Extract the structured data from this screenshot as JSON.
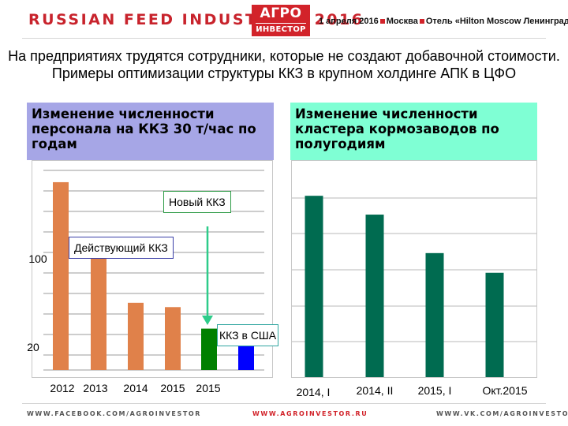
{
  "header": {
    "title": "RUSSIAN FEED INDUSTRY — 2016",
    "logo_line1": "АГРО",
    "logo_line2": "ИНВЕСТОР",
    "event_date": "1 апреля 2016",
    "event_city": "Москва",
    "event_venue": "Отель «Hilton Moscow Ленинградская»"
  },
  "slide_title": "На предприятиях трудятся сотрудники, которые не создают добавочной стоимости. Примеры оптимизации структуры ККЗ в крупном холдинге АПК в ЦФО",
  "left_panel": {
    "heading": "Изменение численности персонала на ККЗ 30 т/час по годам"
  },
  "right_panel": {
    "heading": "Изменение численности кластера кормозаводов по полугодиям"
  },
  "legend": {
    "new": "Новый ККЗ",
    "current": "Действующий ККЗ",
    "usa": "ККЗ в США"
  },
  "chart_data": [
    {
      "type": "bar",
      "categories": [
        "2012",
        "2013",
        "2014",
        "2015",
        "2015",
        ""
      ],
      "values": [
        218,
        135,
        78,
        73,
        48,
        31
      ],
      "bar_colors": [
        "#e0814a",
        "#e0814a",
        "#e0814a",
        "#e0814a",
        "#008000",
        "#0000ff"
      ],
      "y_tick_labels": [
        "100",
        "20"
      ],
      "y_ticks": [
        100,
        20
      ],
      "ylim": [
        0,
        250
      ],
      "grid": true
    },
    {
      "type": "bar",
      "categories": [
        "2014, I",
        "2014, II",
        "2015, I",
        "Окт.2015"
      ],
      "values": [
        212,
        190,
        145,
        122
      ],
      "bar_colors": [
        "#006b50",
        "#006b50",
        "#006b50",
        "#006b50"
      ],
      "ylim": [
        0,
        250
      ],
      "grid": true
    }
  ],
  "footer": {
    "facebook": "WWW.FACEBOOK.COM/AGROINVESTOR",
    "site": "WWW.AGROINVESTOR.RU",
    "vk": "WWW.VK.COM/AGROINVESTOR"
  },
  "colors": {
    "brand_red": "#d2232a",
    "orange_bar": "#e0814a",
    "green_bar": "#008000",
    "blue_bar": "#0000ff",
    "dark_green_bar": "#006b50",
    "left_head_bg": "#a6a6e6",
    "right_head_bg": "#7fffd4",
    "arrow": "#2ecc8a"
  }
}
